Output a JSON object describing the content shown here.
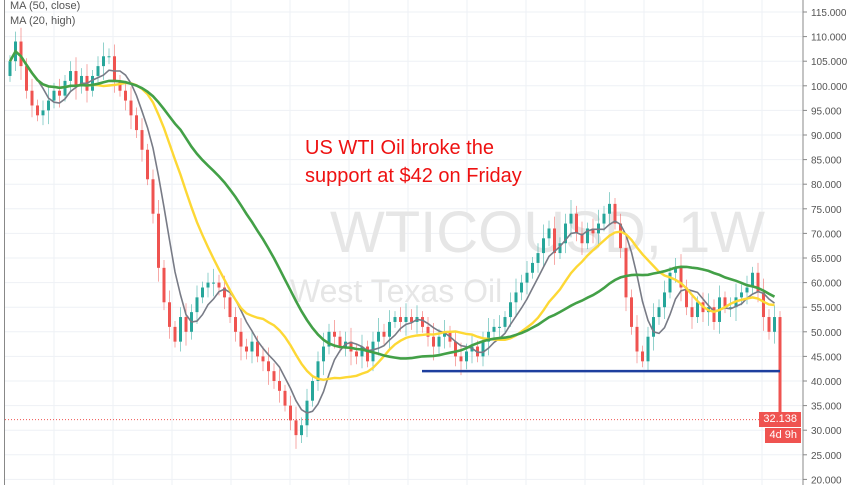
{
  "chart_data": {
    "type": "candlestick",
    "symbol_watermark": "WTICOUSD, 1W",
    "description_watermark": "West Texas Oil",
    "indicators": [
      {
        "label": "MA (50, close)",
        "color": "#43a047"
      },
      {
        "label": "MA (20, high)",
        "color": "#fdd835"
      }
    ],
    "short_ma_color": "#787b86",
    "annotation": [
      "US WTI Oil broke the",
      "support at $42 on Friday"
    ],
    "annotation_color": "#ee1111",
    "support_level": 42,
    "support_color": "#1e3f9e",
    "ylim": [
      20,
      117
    ],
    "y_ticks": [
      "115.000",
      "110.000",
      "105.000",
      "100.000",
      "95.000",
      "90.000",
      "85.000",
      "80.000",
      "75.000",
      "70.000",
      "65.000",
      "60.000",
      "55.000",
      "50.000",
      "45.000",
      "40.000",
      "35.000",
      "30.000",
      "25.000",
      "20.000"
    ],
    "last_price": "32.138",
    "countdown": "4d 9h",
    "up_color": "#26a69a",
    "down_color": "#ef5350",
    "grid": true,
    "closes": [
      105,
      109,
      104,
      99,
      96,
      94,
      95,
      97,
      99,
      98,
      101,
      103,
      100,
      102,
      99,
      102,
      104,
      106,
      106,
      101,
      99,
      97,
      94,
      91,
      87,
      81,
      74,
      63,
      56,
      51,
      48,
      53,
      50,
      54,
      57,
      59,
      60,
      60,
      59,
      57,
      53,
      50,
      47,
      46,
      48,
      45,
      44,
      42,
      40,
      38,
      35,
      32,
      29,
      31,
      36,
      40,
      44,
      47,
      50,
      49,
      47,
      48,
      46,
      45,
      47,
      44,
      48,
      50,
      49,
      52,
      53,
      52,
      53,
      52,
      53,
      51,
      49,
      47,
      49,
      50,
      48,
      45,
      44,
      46,
      47,
      45,
      48,
      50,
      51,
      51,
      53,
      56,
      58,
      60,
      62,
      64,
      66,
      69,
      71,
      66,
      68,
      72,
      74,
      70,
      68,
      71,
      70,
      72,
      74,
      76,
      72,
      67,
      57,
      51,
      46,
      44,
      49,
      53,
      55,
      58,
      62,
      63,
      59,
      55,
      53,
      56,
      54,
      55,
      52,
      57,
      55,
      55,
      57,
      58,
      59,
      62,
      58,
      53,
      50,
      53,
      32.138
    ],
    "first_open": 102
  }
}
